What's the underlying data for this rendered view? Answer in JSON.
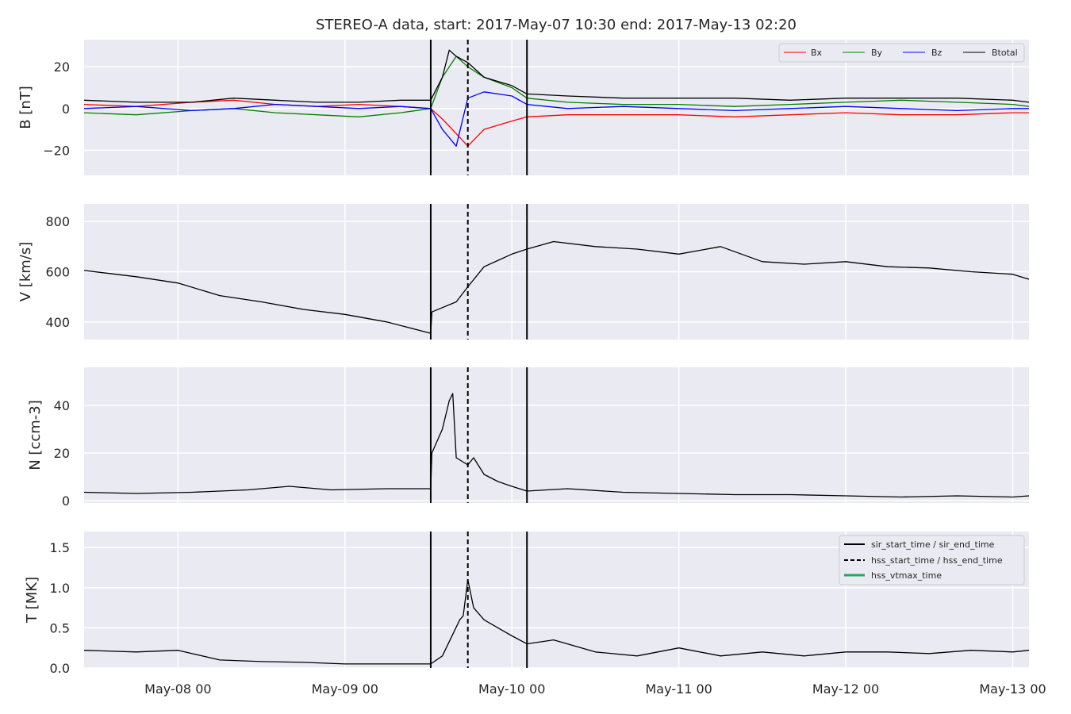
{
  "title": "STEREO-A data, start: 2017-May-07 10:30  end: 2017-May-13 02:20",
  "colors": {
    "Bx": "#ff0000",
    "By": "#008000",
    "Bz": "#0000ff",
    "Btotal": "#000000",
    "hss_vtmax": "#2ca25f",
    "panel_bg": "#eaeaf2"
  },
  "x_axis": {
    "start": "2017-05-07 10:30",
    "end": "2017-05-13 02:20",
    "ticks": [
      "2017-05-08 00:00",
      "2017-05-09 00:00",
      "2017-05-10 00:00",
      "2017-05-11 00:00",
      "2017-05-12 00:00",
      "2017-05-13 00:00"
    ],
    "tick_labels": [
      "May-08 00",
      "May-09 00",
      "May-10 00",
      "May-11 00",
      "May-12 00",
      "May-13 00"
    ]
  },
  "event_lines": {
    "sir_start_time": "2017-05-09 12:20",
    "hss_start_time": "2017-05-09 17:40",
    "sir_end_time": "2017-05-10 02:10"
  },
  "chart_data": [
    {
      "type": "line",
      "ylabel": "B [nT]",
      "ylim": [
        -32,
        33
      ],
      "yticks": [
        -20,
        0,
        20
      ],
      "ytick_labels": [
        "−20",
        "0",
        "20"
      ],
      "grid": true,
      "legend": {
        "placement": "top-right",
        "columns": 4
      },
      "series": [
        {
          "name": "Bx",
          "x": [
            "2017-05-07 10:30",
            "2017-05-07 18:00",
            "2017-05-08 02:00",
            "2017-05-08 08:00",
            "2017-05-08 14:00",
            "2017-05-08 20:00",
            "2017-05-09 02:00",
            "2017-05-09 08:00",
            "2017-05-09 12:20",
            "2017-05-09 14:00",
            "2017-05-09 16:00",
            "2017-05-09 17:40",
            "2017-05-09 20:00",
            "2017-05-10 00:00",
            "2017-05-10 02:10",
            "2017-05-10 08:00",
            "2017-05-10 16:00",
            "2017-05-11 00:00",
            "2017-05-11 08:00",
            "2017-05-11 16:00",
            "2017-05-12 00:00",
            "2017-05-12 08:00",
            "2017-05-12 16:00",
            "2017-05-13 00:00",
            "2017-05-13 02:20"
          ],
          "values": [
            2,
            1,
            3,
            4,
            2,
            1,
            2,
            1,
            0,
            -5,
            -12,
            -18,
            -10,
            -6,
            -4,
            -3,
            -3,
            -3,
            -4,
            -3,
            -2,
            -3,
            -3,
            -2,
            -2
          ]
        },
        {
          "name": "By",
          "x": [
            "2017-05-07 10:30",
            "2017-05-07 18:00",
            "2017-05-08 02:00",
            "2017-05-08 08:00",
            "2017-05-08 14:00",
            "2017-05-08 20:00",
            "2017-05-09 02:00",
            "2017-05-09 08:00",
            "2017-05-09 12:20",
            "2017-05-09 14:00",
            "2017-05-09 16:00",
            "2017-05-09 17:40",
            "2017-05-09 20:00",
            "2017-05-10 00:00",
            "2017-05-10 02:10",
            "2017-05-10 08:00",
            "2017-05-10 16:00",
            "2017-05-11 00:00",
            "2017-05-11 08:00",
            "2017-05-11 16:00",
            "2017-05-12 00:00",
            "2017-05-12 08:00",
            "2017-05-12 16:00",
            "2017-05-13 00:00",
            "2017-05-13 02:20"
          ],
          "values": [
            -2,
            -3,
            -1,
            0,
            -2,
            -3,
            -4,
            -2,
            0,
            15,
            25,
            20,
            15,
            10,
            5,
            3,
            2,
            2,
            1,
            2,
            3,
            4,
            3,
            2,
            1
          ]
        },
        {
          "name": "Bz",
          "x": [
            "2017-05-07 10:30",
            "2017-05-07 18:00",
            "2017-05-08 02:00",
            "2017-05-08 08:00",
            "2017-05-08 14:00",
            "2017-05-08 20:00",
            "2017-05-09 02:00",
            "2017-05-09 08:00",
            "2017-05-09 12:20",
            "2017-05-09 14:00",
            "2017-05-09 16:00",
            "2017-05-09 17:40",
            "2017-05-09 20:00",
            "2017-05-10 00:00",
            "2017-05-10 02:10",
            "2017-05-10 08:00",
            "2017-05-10 16:00",
            "2017-05-11 00:00",
            "2017-05-11 08:00",
            "2017-05-11 16:00",
            "2017-05-12 00:00",
            "2017-05-12 08:00",
            "2017-05-12 16:00",
            "2017-05-13 00:00",
            "2017-05-13 02:20"
          ],
          "values": [
            0,
            1,
            -1,
            0,
            2,
            1,
            0,
            1,
            0,
            -10,
            -18,
            5,
            8,
            6,
            2,
            0,
            1,
            0,
            -1,
            0,
            1,
            0,
            -1,
            0,
            0
          ]
        },
        {
          "name": "Btotal",
          "x": [
            "2017-05-07 10:30",
            "2017-05-07 18:00",
            "2017-05-08 02:00",
            "2017-05-08 08:00",
            "2017-05-08 14:00",
            "2017-05-08 20:00",
            "2017-05-09 02:00",
            "2017-05-09 08:00",
            "2017-05-09 12:20",
            "2017-05-09 14:00",
            "2017-05-09 15:00",
            "2017-05-09 16:00",
            "2017-05-09 17:40",
            "2017-05-09 20:00",
            "2017-05-10 00:00",
            "2017-05-10 02:10",
            "2017-05-10 08:00",
            "2017-05-10 16:00",
            "2017-05-11 00:00",
            "2017-05-11 08:00",
            "2017-05-11 16:00",
            "2017-05-12 00:00",
            "2017-05-12 08:00",
            "2017-05-12 16:00",
            "2017-05-13 00:00",
            "2017-05-13 02:20"
          ],
          "values": [
            4,
            3,
            3,
            5,
            4,
            3,
            3,
            4,
            4,
            15,
            28,
            25,
            22,
            15,
            11,
            7,
            6,
            5,
            5,
            5,
            4,
            5,
            5,
            5,
            4,
            3
          ]
        }
      ]
    },
    {
      "type": "line",
      "ylabel": "V [km/s]",
      "ylim": [
        330,
        870
      ],
      "yticks": [
        400,
        600,
        800
      ],
      "ytick_labels": [
        "400",
        "600",
        "800"
      ],
      "grid": true,
      "series": [
        {
          "x": [
            "2017-05-07 10:30",
            "2017-05-07 18:00",
            "2017-05-08 00:00",
            "2017-05-08 06:00",
            "2017-05-08 12:00",
            "2017-05-08 18:00",
            "2017-05-09 00:00",
            "2017-05-09 06:00",
            "2017-05-09 12:20",
            "2017-05-09 12:30",
            "2017-05-09 16:00",
            "2017-05-09 17:40",
            "2017-05-09 20:00",
            "2017-05-10 00:00",
            "2017-05-10 02:10",
            "2017-05-10 06:00",
            "2017-05-10 12:00",
            "2017-05-10 18:00",
            "2017-05-11 00:00",
            "2017-05-11 06:00",
            "2017-05-11 12:00",
            "2017-05-11 18:00",
            "2017-05-12 00:00",
            "2017-05-12 06:00",
            "2017-05-12 12:00",
            "2017-05-12 18:00",
            "2017-05-13 00:00",
            "2017-05-13 02:20"
          ],
          "values": [
            605,
            580,
            555,
            505,
            480,
            450,
            430,
            400,
            355,
            440,
            480,
            540,
            620,
            670,
            690,
            720,
            700,
            690,
            670,
            700,
            640,
            630,
            640,
            620,
            615,
            600,
            590,
            570
          ]
        }
      ]
    },
    {
      "type": "line",
      "ylabel": "N [ccm-3]",
      "ylim": [
        -1,
        56
      ],
      "yticks": [
        0,
        20,
        40
      ],
      "ytick_labels": [
        "0",
        "20",
        "40"
      ],
      "grid": true,
      "series": [
        {
          "x": [
            "2017-05-07 10:30",
            "2017-05-07 18:00",
            "2017-05-08 02:00",
            "2017-05-08 10:00",
            "2017-05-08 16:00",
            "2017-05-08 22:00",
            "2017-05-09 06:00",
            "2017-05-09 12:20",
            "2017-05-09 12:30",
            "2017-05-09 14:00",
            "2017-05-09 15:00",
            "2017-05-09 15:30",
            "2017-05-09 16:00",
            "2017-05-09 17:40",
            "2017-05-09 18:30",
            "2017-05-09 20:00",
            "2017-05-09 22:00",
            "2017-05-10 00:00",
            "2017-05-10 02:10",
            "2017-05-10 08:00",
            "2017-05-10 16:00",
            "2017-05-11 00:00",
            "2017-05-11 08:00",
            "2017-05-11 16:00",
            "2017-05-12 00:00",
            "2017-05-12 08:00",
            "2017-05-12 16:00",
            "2017-05-13 00:00",
            "2017-05-13 02:20"
          ],
          "values": [
            3.5,
            3,
            3.5,
            4.5,
            6,
            4.5,
            5,
            5,
            20,
            30,
            42,
            45,
            18,
            15,
            18,
            11,
            8,
            6,
            4,
            5,
            3.5,
            3,
            2.5,
            2.5,
            2,
            1.5,
            2,
            1.5,
            2
          ]
        }
      ]
    },
    {
      "type": "line",
      "ylabel": "T [MK]",
      "ylim": [
        0,
        1.7
      ],
      "yticks": [
        0.0,
        0.5,
        1.0,
        1.5
      ],
      "ytick_labels": [
        "0.0",
        "0.5",
        "1.0",
        "1.5"
      ],
      "grid": true,
      "legend": {
        "placement": "top-right",
        "entries": [
          "sir_start_time / sir_end_time",
          "hss_start_time / hss_end_time",
          "hss_vtmax_time"
        ]
      },
      "series": [
        {
          "x": [
            "2017-05-07 10:30",
            "2017-05-07 18:00",
            "2017-05-08 00:00",
            "2017-05-08 06:00",
            "2017-05-08 12:00",
            "2017-05-08 18:00",
            "2017-05-09 00:00",
            "2017-05-09 06:00",
            "2017-05-09 12:20",
            "2017-05-09 14:00",
            "2017-05-09 16:30",
            "2017-05-09 17:00",
            "2017-05-09 17:40",
            "2017-05-09 18:30",
            "2017-05-09 20:00",
            "2017-05-09 22:00",
            "2017-05-10 00:00",
            "2017-05-10 02:10",
            "2017-05-10 06:00",
            "2017-05-10 12:00",
            "2017-05-10 18:00",
            "2017-05-11 00:00",
            "2017-05-11 06:00",
            "2017-05-11 12:00",
            "2017-05-11 18:00",
            "2017-05-12 00:00",
            "2017-05-12 06:00",
            "2017-05-12 12:00",
            "2017-05-12 18:00",
            "2017-05-13 00:00",
            "2017-05-13 02:20"
          ],
          "values": [
            0.22,
            0.2,
            0.22,
            0.1,
            0.08,
            0.07,
            0.05,
            0.05,
            0.05,
            0.15,
            0.6,
            0.65,
            1.1,
            0.75,
            0.6,
            0.5,
            0.4,
            0.3,
            0.35,
            0.2,
            0.15,
            0.25,
            0.15,
            0.2,
            0.15,
            0.2,
            0.2,
            0.18,
            0.22,
            0.2,
            0.22
          ]
        }
      ]
    }
  ]
}
